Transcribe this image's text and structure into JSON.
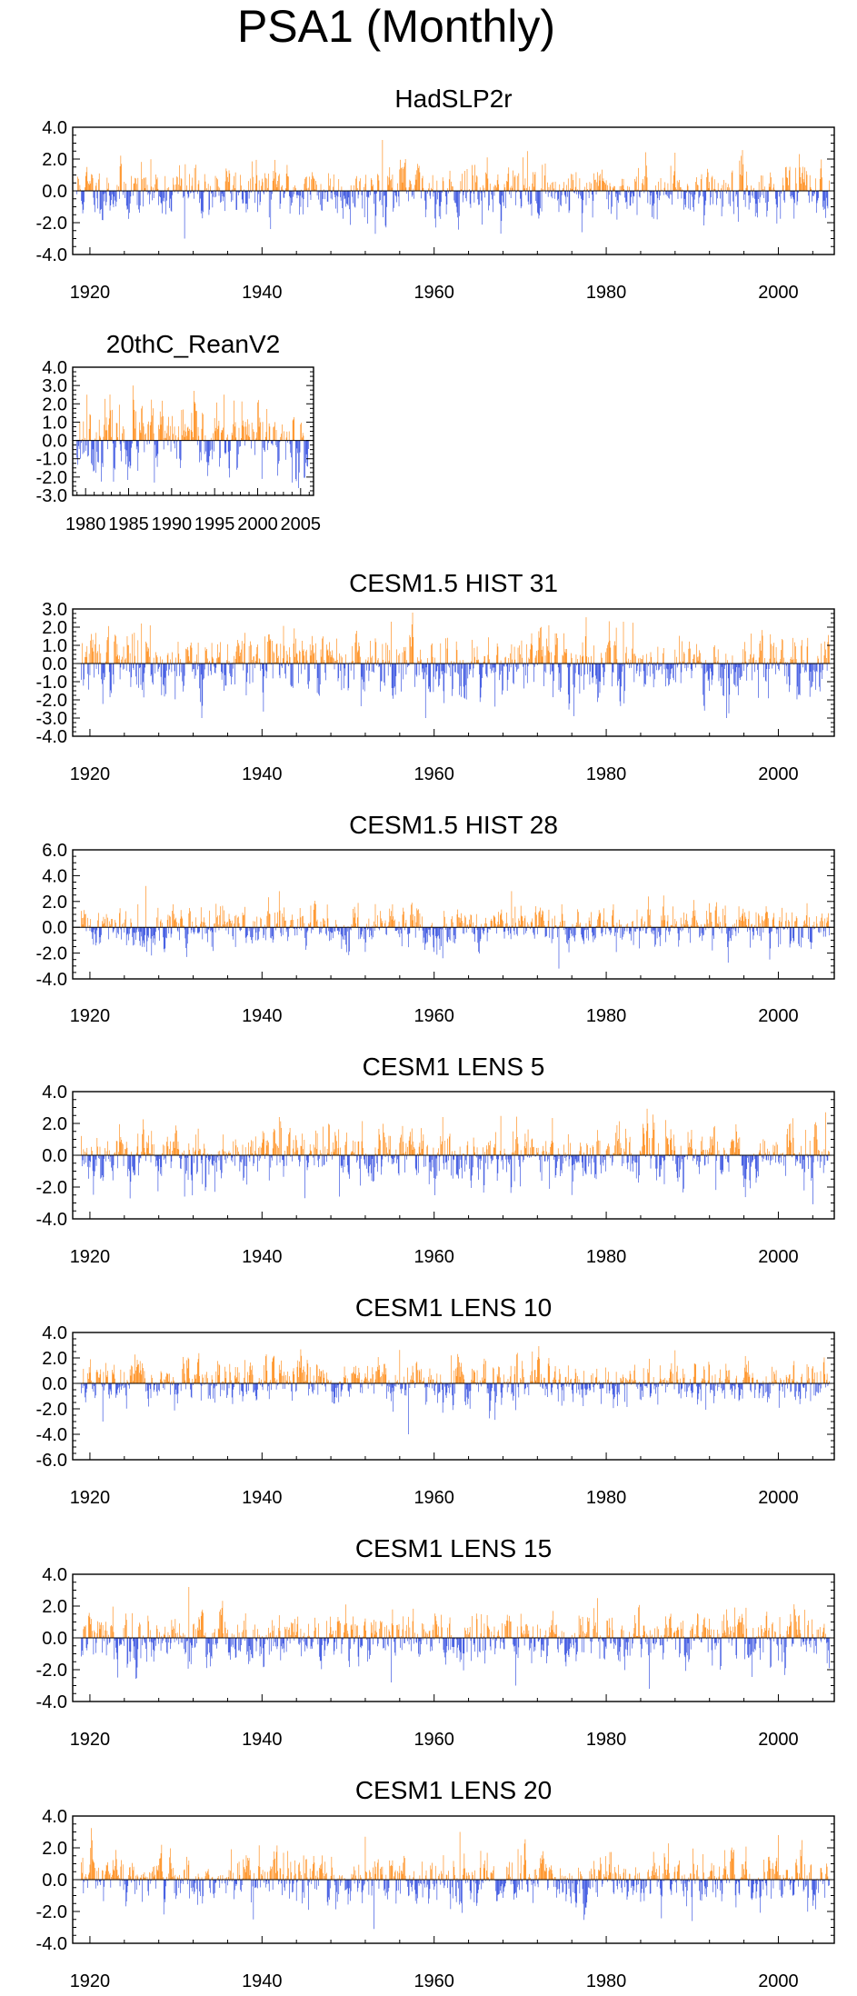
{
  "figure_title": "PSA1 (Monthly)",
  "colors": {
    "positive": "#ff8000",
    "negative": "#1e3cdc",
    "axis": "#000000"
  },
  "chart_data": [
    {
      "type": "bar",
      "title": "HadSLP2r",
      "x_range": [
        1918,
        2006.5
      ],
      "x_ticks": [
        1920,
        1940,
        1960,
        1980,
        2000
      ],
      "x_tick_labels": [
        "1920",
        "1940",
        "1960",
        "1980",
        "2000"
      ],
      "ylim": [
        -4,
        4
      ],
      "y_ticks": [
        4,
        2,
        0,
        -2,
        -4
      ],
      "y_tick_labels": [
        "4.0",
        "2.0",
        "0.0",
        "-2.0",
        "-4.0"
      ],
      "start_year": 1918.5,
      "end_year": 2006,
      "seed": 11,
      "amplitude": 0.85,
      "extremes": [
        [
          1954.0,
          3.2
        ],
        [
          1970.8,
          2.5
        ],
        [
          1953.2,
          -2.7
        ],
        [
          1931.0,
          -3.0
        ],
        [
          1977.2,
          -2.6
        ],
        [
          1988.0,
          2.4
        ],
        [
          1941.0,
          -2.4
        ],
        [
          2005.5,
          -1.7
        ]
      ]
    },
    {
      "type": "bar",
      "title": "20thC_ReanV2",
      "x_range": [
        1978.5,
        2006.5
      ],
      "x_ticks": [
        1980,
        1985,
        1990,
        1995,
        2000,
        2005
      ],
      "x_tick_labels": [
        "1980",
        "1985",
        "1990",
        "1995",
        "2000",
        "2005"
      ],
      "ylim": [
        -3,
        4
      ],
      "y_ticks": [
        4,
        3,
        2,
        1,
        0,
        -1,
        -2,
        -3
      ],
      "y_tick_labels": [
        "4.0",
        "3.0",
        "2.0",
        "1.0",
        "0.0",
        "-1.0",
        "-2.0",
        "-3.0"
      ],
      "start_year": 1979,
      "end_year": 2006,
      "seed": 23,
      "amplitude": 0.95,
      "extremes": [
        [
          1985.5,
          3.0
        ],
        [
          1980.2,
          2.5
        ],
        [
          1988.0,
          -2.3
        ],
        [
          2000.5,
          -2.1
        ],
        [
          2004.0,
          -2.3
        ]
      ]
    },
    {
      "type": "bar",
      "title": "CESM1.5 HIST 31",
      "x_range": [
        1918,
        2006.5
      ],
      "x_ticks": [
        1920,
        1940,
        1960,
        1980,
        2000
      ],
      "x_tick_labels": [
        "1920",
        "1940",
        "1960",
        "1980",
        "2000"
      ],
      "ylim": [
        -4,
        3
      ],
      "y_ticks": [
        3,
        2,
        1,
        0,
        -1,
        -2,
        -3,
        -4
      ],
      "y_tick_labels": [
        "3.0",
        "2.0",
        "1.0",
        "0.0",
        "-1.0",
        "-2.0",
        "-3.0",
        "-4.0"
      ],
      "start_year": 1919,
      "end_year": 2006,
      "seed": 37,
      "amplitude": 0.9,
      "extremes": [
        [
          1926.0,
          2.2
        ],
        [
          1927.0,
          2.1
        ],
        [
          1955.0,
          2.3
        ],
        [
          1982.0,
          2.3
        ],
        [
          1933.0,
          -3.0
        ],
        [
          1959.0,
          -3.0
        ],
        [
          1994.0,
          -3.0
        ]
      ]
    },
    {
      "type": "bar",
      "title": "CESM1.5 HIST 28",
      "x_range": [
        1918,
        2006.5
      ],
      "x_ticks": [
        1920,
        1940,
        1960,
        1980,
        2000
      ],
      "x_tick_labels": [
        "1920",
        "1940",
        "1960",
        "1980",
        "2000"
      ],
      "ylim": [
        -4,
        6
      ],
      "y_ticks": [
        6,
        4,
        2,
        0,
        -2,
        -4
      ],
      "y_tick_labels": [
        "6.0",
        "4.0",
        "2.0",
        "0.0",
        "-2.0",
        "-4.0"
      ],
      "start_year": 1919,
      "end_year": 2006,
      "seed": 41,
      "amplitude": 0.85,
      "extremes": [
        [
          1926.5,
          3.2
        ],
        [
          1942.0,
          2.8
        ],
        [
          1969.0,
          2.8
        ],
        [
          1974.5,
          -3.2
        ],
        [
          1961.0,
          -2.4
        ],
        [
          1999.0,
          -2.5
        ]
      ]
    },
    {
      "type": "bar",
      "title": "CESM1 LENS 5",
      "x_range": [
        1918,
        2006.5
      ],
      "x_ticks": [
        1920,
        1940,
        1960,
        1980,
        2000
      ],
      "x_tick_labels": [
        "1920",
        "1940",
        "1960",
        "1980",
        "2000"
      ],
      "ylim": [
        -4,
        4
      ],
      "y_ticks": [
        4,
        2,
        0,
        -2,
        -4
      ],
      "y_tick_labels": [
        "4.0",
        "2.0",
        "0.0",
        "-2.0",
        "-4.0"
      ],
      "start_year": 1919,
      "end_year": 2006,
      "seed": 53,
      "amplitude": 0.95,
      "extremes": [
        [
          2005.5,
          2.7
        ],
        [
          1961.0,
          2.4
        ],
        [
          1942.0,
          2.4
        ],
        [
          1976.0,
          -2.5
        ],
        [
          1945.0,
          -2.7
        ],
        [
          1949.0,
          -2.6
        ],
        [
          1931.0,
          -2.6
        ]
      ]
    },
    {
      "type": "bar",
      "title": "CESM1 LENS 10",
      "x_range": [
        1918,
        2006.5
      ],
      "x_ticks": [
        1920,
        1940,
        1960,
        1980,
        2000
      ],
      "x_tick_labels": [
        "1920",
        "1940",
        "1960",
        "1980",
        "2000"
      ],
      "ylim": [
        -6,
        4
      ],
      "y_ticks": [
        4,
        2,
        0,
        -2,
        -4,
        -6
      ],
      "y_tick_labels": [
        "4.0",
        "2.0",
        "0.0",
        "-2.0",
        "-4.0",
        "-6.0"
      ],
      "start_year": 1919,
      "end_year": 2006,
      "seed": 67,
      "amplitude": 0.85,
      "extremes": [
        [
          1957.0,
          -4.0
        ],
        [
          1988.0,
          2.6
        ],
        [
          1921.5,
          -3.0
        ],
        [
          1962.0,
          2.2
        ],
        [
          1969.5,
          -2.1
        ]
      ]
    },
    {
      "type": "bar",
      "title": "CESM1 LENS 15",
      "x_range": [
        1918,
        2006.5
      ],
      "x_ticks": [
        1920,
        1940,
        1960,
        1980,
        2000
      ],
      "x_tick_labels": [
        "1920",
        "1940",
        "1960",
        "1980",
        "2000"
      ],
      "ylim": [
        -4,
        4
      ],
      "y_ticks": [
        4,
        2,
        0,
        -2,
        -4
      ],
      "y_tick_labels": [
        "4.0",
        "2.0",
        "0.0",
        "-2.0",
        "-4.0"
      ],
      "start_year": 1919,
      "end_year": 2006,
      "seed": 79,
      "amplitude": 0.85,
      "extremes": [
        [
          1931.5,
          3.2
        ],
        [
          1985.0,
          -3.2
        ],
        [
          1979.0,
          2.5
        ],
        [
          1969.5,
          -3.0
        ],
        [
          1955.0,
          -2.8
        ]
      ]
    },
    {
      "type": "bar",
      "title": "CESM1 LENS 20",
      "x_range": [
        1918,
        2006.5
      ],
      "x_ticks": [
        1920,
        1940,
        1960,
        1980,
        2000
      ],
      "x_tick_labels": [
        "1920",
        "1940",
        "1960",
        "1980",
        "2000"
      ],
      "ylim": [
        -4,
        4
      ],
      "y_ticks": [
        4,
        2,
        0,
        -2,
        -4
      ],
      "y_tick_labels": [
        "4.0",
        "2.0",
        "0.0",
        "-2.0",
        "-4.0"
      ],
      "start_year": 1919,
      "end_year": 2006,
      "seed": 97,
      "amplitude": 0.85,
      "extremes": [
        [
          2000.0,
          2.8
        ],
        [
          1952.0,
          2.7
        ],
        [
          1963.0,
          3.0
        ],
        [
          1953.0,
          -3.1
        ],
        [
          1990.0,
          -2.6
        ],
        [
          1939.0,
          -2.5
        ]
      ]
    }
  ]
}
